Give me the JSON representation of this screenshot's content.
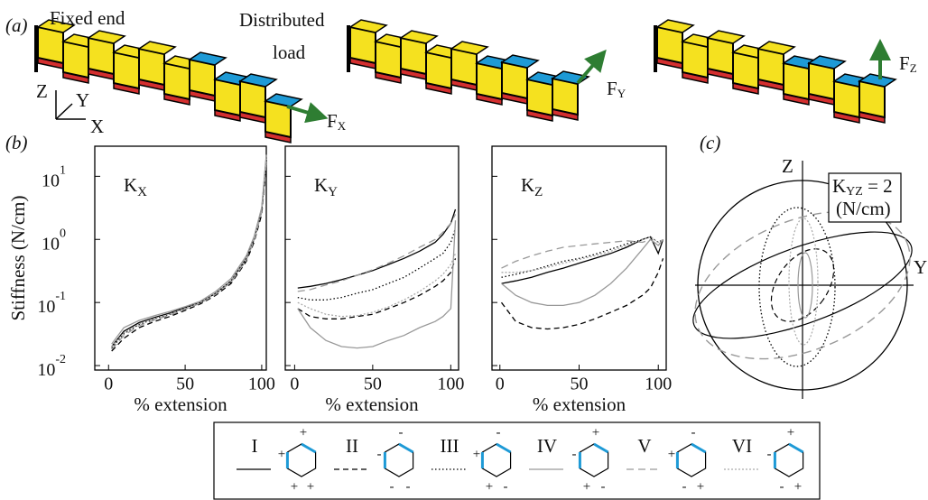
{
  "figure": {
    "panel_a": "(a)",
    "panel_b": "(b)",
    "panel_c": "(c)",
    "fixed_end": "Fixed end",
    "distributed": "Distributed",
    "load": "load",
    "axis_z": "Z",
    "axis_y": "Y",
    "axis_x": "X",
    "forces": [
      {
        "main": "F",
        "sub": "X"
      },
      {
        "main": "F",
        "sub": "Y"
      },
      {
        "main": "F",
        "sub": "Z"
      }
    ],
    "polar_z": "Z",
    "polar_y": "Y",
    "kyz_main": "K",
    "kyz_sub": "YZ",
    "kyz_value": " = 2",
    "kyz_unit": "(N/cm)"
  },
  "legend_icons": [
    {
      "signs": [
        "+",
        "+",
        "+",
        "+"
      ]
    },
    {
      "signs": [
        "-",
        "-",
        "-",
        "-"
      ]
    },
    {
      "signs": [
        "+",
        "-",
        "+",
        "-"
      ]
    },
    {
      "signs": [
        "-",
        "+",
        "+",
        "-"
      ]
    },
    {
      "signs": [
        "+",
        "-",
        "-",
        "+"
      ]
    },
    {
      "signs": [
        "-",
        "+",
        "-",
        "+"
      ]
    }
  ],
  "chart_data": [
    {
      "type": "line",
      "title": "K",
      "title_sub": "X",
      "x_label": "% extension",
      "y_label": "Stiffness (N/cm)",
      "log_y": true,
      "xlim": [
        -9,
        103
      ],
      "ylim": [
        0.0085,
        30
      ],
      "xticks": [
        0,
        50,
        100
      ],
      "show_y_tick_labels": true,
      "yticks": [
        {
          "value": 10,
          "label": "10",
          "exponent": "1"
        },
        {
          "value": 1,
          "label": "10",
          "exponent": "0"
        },
        {
          "value": 0.1,
          "label": "10",
          "exponent": "-1"
        },
        {
          "value": 0.01,
          "label": "10",
          "exponent": "-2"
        }
      ],
      "x": [
        2,
        10,
        20,
        30,
        40,
        50,
        60,
        70,
        80,
        90,
        95,
        100,
        103
      ],
      "series": [
        {
          "name": "I",
          "color": "#000000",
          "dash": "none",
          "values": [
            0.02,
            0.035,
            0.048,
            0.058,
            0.068,
            0.083,
            0.1,
            0.14,
            0.22,
            0.5,
            1,
            3,
            20
          ]
        },
        {
          "name": "II",
          "color": "#000000",
          "dash": "6,4",
          "values": [
            0.017,
            0.027,
            0.04,
            0.05,
            0.06,
            0.075,
            0.095,
            0.13,
            0.2,
            0.45,
            0.9,
            2.5,
            15
          ]
        },
        {
          "name": "III",
          "color": "#000000",
          "dash": "1.5,2.5",
          "values": [
            0.019,
            0.032,
            0.045,
            0.055,
            0.065,
            0.08,
            0.1,
            0.14,
            0.21,
            0.48,
            1,
            2.8,
            18
          ]
        },
        {
          "name": "IV",
          "color": "#999999",
          "dash": "none",
          "values": [
            0.022,
            0.04,
            0.052,
            0.062,
            0.072,
            0.086,
            0.105,
            0.15,
            0.24,
            0.55,
            1.1,
            3.2,
            22
          ]
        },
        {
          "name": "V",
          "color": "#999999",
          "dash": "8,5",
          "values": [
            0.018,
            0.03,
            0.043,
            0.053,
            0.063,
            0.078,
            0.098,
            0.135,
            0.21,
            0.47,
            0.95,
            2.7,
            17
          ]
        },
        {
          "name": "VI",
          "color": "#aaaaaa",
          "dash": "2,2",
          "values": [
            0.02,
            0.033,
            0.046,
            0.056,
            0.066,
            0.081,
            0.1,
            0.14,
            0.22,
            0.5,
            1,
            2.9,
            19
          ]
        }
      ]
    },
    {
      "type": "line",
      "title": "K",
      "title_sub": "Y",
      "x_label": "% extension",
      "log_y": true,
      "xlim": [
        -6,
        105
      ],
      "ylim": [
        0.0085,
        30
      ],
      "xticks": [
        0,
        50,
        100
      ],
      "show_y_tick_labels": false,
      "yticks": [
        10,
        1,
        0.1,
        0.01
      ],
      "x": [
        2,
        10,
        20,
        30,
        40,
        50,
        60,
        70,
        80,
        90,
        95,
        100,
        103
      ],
      "series": [
        {
          "color": "#000000",
          "dash": "none",
          "values": [
            0.17,
            0.18,
            0.2,
            0.23,
            0.27,
            0.32,
            0.4,
            0.5,
            0.65,
            0.9,
            1.2,
            1.8,
            3
          ]
        },
        {
          "color": "#000000",
          "dash": "6,4",
          "values": [
            0.08,
            0.06,
            0.055,
            0.055,
            0.06,
            0.065,
            0.08,
            0.1,
            0.13,
            0.18,
            0.22,
            0.3,
            0.5
          ]
        },
        {
          "color": "#000000",
          "dash": "1.5,2.5",
          "values": [
            0.12,
            0.11,
            0.11,
            0.12,
            0.14,
            0.16,
            0.2,
            0.25,
            0.35,
            0.5,
            0.6,
            0.9,
            1.5
          ]
        },
        {
          "color": "#999999",
          "dash": "none",
          "values": [
            0.08,
            0.04,
            0.025,
            0.02,
            0.019,
            0.02,
            0.025,
            0.03,
            0.04,
            0.05,
            0.06,
            0.08,
            2
          ]
        },
        {
          "color": "#999999",
          "dash": "8,5",
          "values": [
            0.15,
            0.16,
            0.19,
            0.22,
            0.27,
            0.33,
            0.42,
            0.55,
            0.75,
            1,
            1.3,
            1.8,
            2.5
          ]
        },
        {
          "color": "#aaaaaa",
          "dash": "2,2",
          "values": [
            0.1,
            0.08,
            0.065,
            0.06,
            0.062,
            0.07,
            0.085,
            0.11,
            0.15,
            0.22,
            0.28,
            0.4,
            0.6
          ]
        }
      ]
    },
    {
      "type": "line",
      "title": "K",
      "title_sub": "Z",
      "x_label": "% extension",
      "log_y": true,
      "xlim": [
        -5,
        105
      ],
      "ylim": [
        0.0085,
        30
      ],
      "xticks": [
        0,
        50,
        100
      ],
      "show_y_tick_labels": false,
      "yticks": [
        10,
        1,
        0.1,
        0.01
      ],
      "x": [
        1,
        10,
        20,
        30,
        40,
        50,
        60,
        70,
        80,
        90,
        95,
        100,
        103
      ],
      "series": [
        {
          "color": "#000000",
          "dash": "none",
          "values": [
            0.2,
            0.22,
            0.25,
            0.3,
            0.35,
            0.42,
            0.5,
            0.6,
            0.75,
            1,
            1.1,
            0.6,
            1
          ]
        },
        {
          "color": "#000000",
          "dash": "6,4",
          "values": [
            0.1,
            0.05,
            0.04,
            0.038,
            0.04,
            0.045,
            0.055,
            0.07,
            0.09,
            0.13,
            0.17,
            0.3,
            0.5
          ]
        },
        {
          "color": "#000000",
          "dash": "1.5,2.5",
          "values": [
            0.25,
            0.28,
            0.32,
            0.38,
            0.45,
            0.5,
            0.58,
            0.7,
            0.85,
            1,
            1.1,
            0.9,
            1
          ]
        },
        {
          "color": "#999999",
          "dash": "none",
          "values": [
            0.2,
            0.13,
            0.1,
            0.09,
            0.09,
            0.1,
            0.13,
            0.2,
            0.35,
            0.7,
            1,
            0.8,
            1
          ]
        },
        {
          "color": "#999999",
          "dash": "8,5",
          "values": [
            0.35,
            0.45,
            0.55,
            0.65,
            0.75,
            0.8,
            0.85,
            0.9,
            0.95,
            0.9,
            1,
            0.8,
            1
          ]
        },
        {
          "color": "#aaaaaa",
          "dash": "2,2",
          "values": [
            0.3,
            0.3,
            0.32,
            0.36,
            0.42,
            0.48,
            0.55,
            0.65,
            0.8,
            1,
            1.1,
            0.9,
            1
          ]
        }
      ]
    }
  ]
}
